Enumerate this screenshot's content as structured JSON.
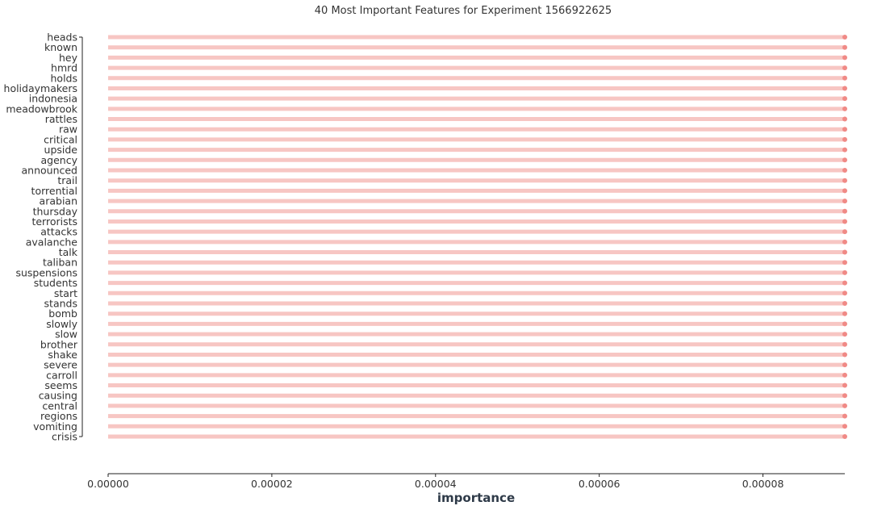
{
  "chart_data": {
    "type": "lollipop",
    "title": "40 Most Important Features for Experiment 1566922625",
    "xlabel": "importance",
    "ylabel": "",
    "xlim": [
      0,
      9e-05
    ],
    "xticks": [
      "0.00000",
      "0.00002",
      "0.00004",
      "0.00006",
      "0.00008"
    ],
    "xtick_values": [
      0,
      2e-05,
      4e-05,
      6e-05,
      8e-05
    ],
    "grid": false,
    "colors": {
      "stem": "#f7c6c3",
      "marker": "#f08a86",
      "axis": "#222222",
      "text": "#333333"
    },
    "categories": [
      "heads",
      "known",
      "hey",
      "hmrd",
      "holds",
      "holidaymakers",
      "indonesia",
      "meadowbrook",
      "rattles",
      "raw",
      "critical",
      "upside",
      "agency",
      "announced",
      "trail",
      "torrential",
      "arabian",
      "thursday",
      "terrorists",
      "attacks",
      "avalanche",
      "talk",
      "taliban",
      "suspensions",
      "students",
      "start",
      "stands",
      "bomb",
      "slowly",
      "slow",
      "brother",
      "shake",
      "severe",
      "carroll",
      "seems",
      "causing",
      "central",
      "regions",
      "vomiting",
      "crisis"
    ],
    "values": [
      9e-05,
      9e-05,
      9e-05,
      9e-05,
      9e-05,
      9e-05,
      9e-05,
      9e-05,
      9e-05,
      9e-05,
      9e-05,
      9e-05,
      9e-05,
      9e-05,
      9e-05,
      9e-05,
      9e-05,
      9e-05,
      9e-05,
      9e-05,
      9e-05,
      9e-05,
      9e-05,
      9e-05,
      9e-05,
      9e-05,
      9e-05,
      9e-05,
      9e-05,
      9e-05,
      9e-05,
      9e-05,
      9e-05,
      9e-05,
      9e-05,
      9e-05,
      9e-05,
      9e-05,
      9e-05,
      9e-05
    ]
  }
}
